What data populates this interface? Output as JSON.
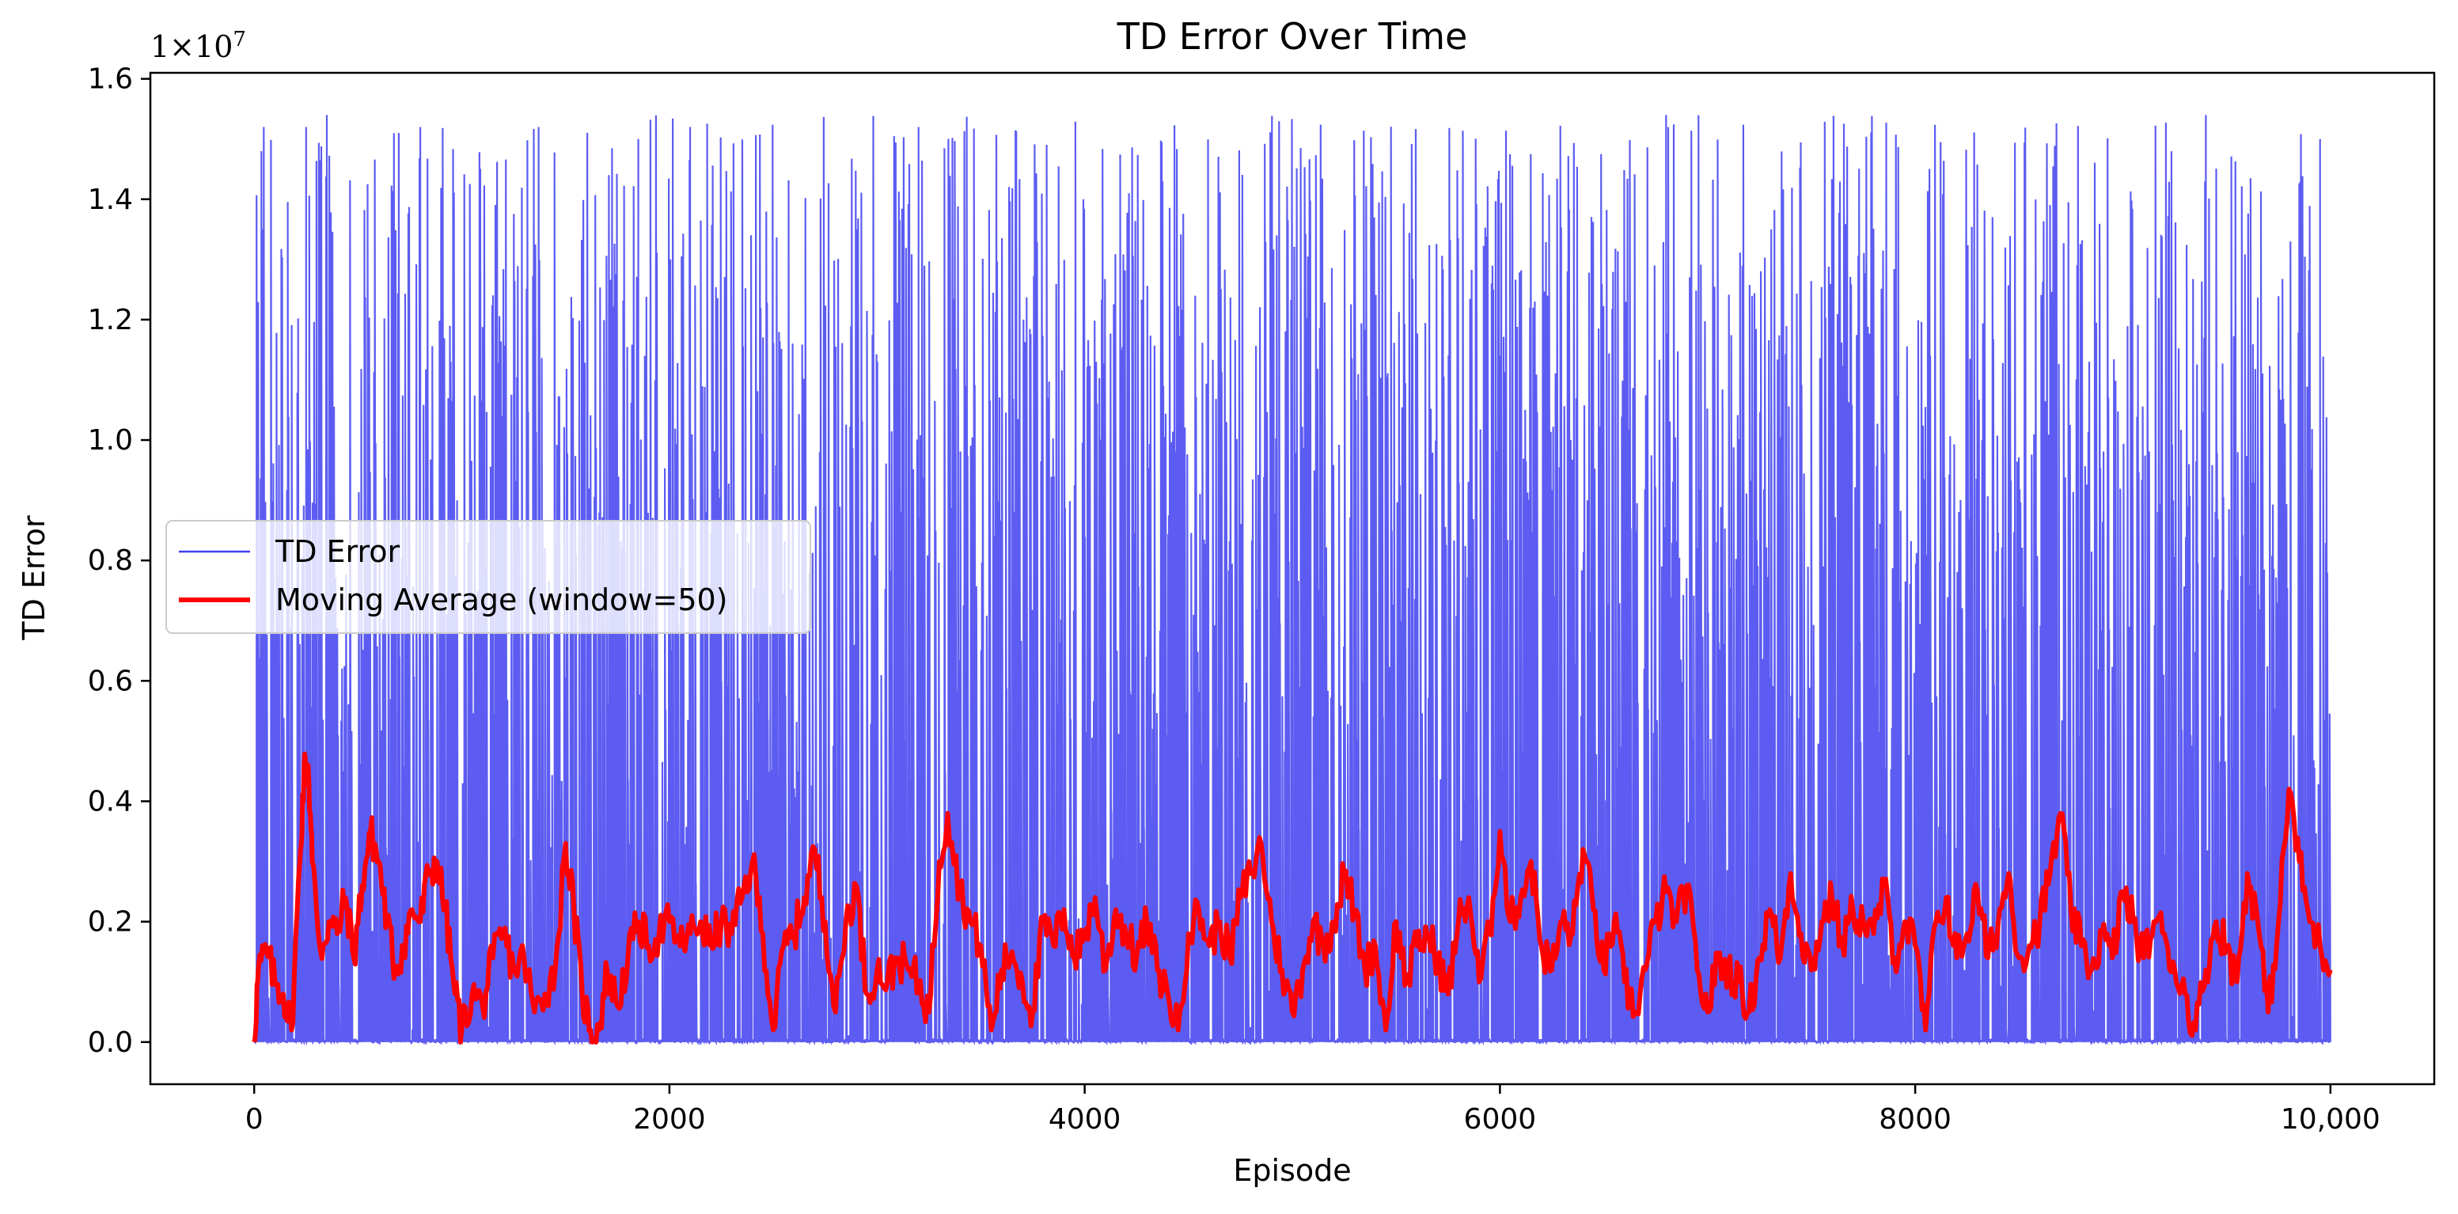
{
  "chart_data": {
    "type": "line",
    "title": "TD Error Over Time",
    "xlabel": "Episode",
    "ylabel": "TD Error",
    "y_scale_label": "1×10",
    "y_scale_exponent": "7",
    "y_multiplier": 10000000,
    "xlim": [
      -500,
      10500
    ],
    "ylim": [
      -0.07,
      1.61
    ],
    "x_ticks": [
      0,
      2000,
      4000,
      6000,
      8000,
      10000
    ],
    "x_tick_labels": [
      "0",
      "2000",
      "4000",
      "6000",
      "8000",
      "10,000"
    ],
    "y_ticks": [
      0.0,
      0.2,
      0.4,
      0.6,
      0.8,
      1.0,
      1.2,
      1.4,
      1.6
    ],
    "y_tick_labels": [
      "0.0",
      "0.2",
      "0.4",
      "0.6",
      "0.8",
      "1.0",
      "1.2",
      "1.4",
      "1.6"
    ],
    "grid": false,
    "legend_position": "center-left",
    "episodes": 10000,
    "series": [
      {
        "name": "TD Error",
        "color": "#4040f0",
        "style": "thin line",
        "values_approx": {
          "baseline": 0.0,
          "spike_max": 1.54,
          "spike_min_cluster": 0.8,
          "peak_examples": [
            [
              40,
              1.35
            ],
            [
              250,
              1.52
            ],
            [
              350,
              1.54
            ],
            [
              800,
              1.52
            ],
            [
              1850,
              1.5
            ],
            [
              2100,
              1.52
            ],
            [
              3200,
              1.52
            ],
            [
              6800,
              1.54
            ],
            [
              9400,
              1.54
            ],
            [
              9950,
              1.5
            ]
          ]
        }
      },
      {
        "name": "Moving Average (window=50)",
        "color": "#ff0000",
        "style": "thick line",
        "window": 50,
        "points": [
          [
            0,
            0.0
          ],
          [
            20,
            0.12
          ],
          [
            60,
            0.15
          ],
          [
            100,
            0.1
          ],
          [
            140,
            0.08
          ],
          [
            180,
            0.02
          ],
          [
            220,
            0.3
          ],
          [
            240,
            0.45
          ],
          [
            260,
            0.46
          ],
          [
            280,
            0.3
          ],
          [
            320,
            0.15
          ],
          [
            360,
            0.2
          ],
          [
            400,
            0.18
          ],
          [
            440,
            0.24
          ],
          [
            480,
            0.14
          ],
          [
            520,
            0.26
          ],
          [
            560,
            0.35
          ],
          [
            600,
            0.3
          ],
          [
            640,
            0.2
          ],
          [
            680,
            0.12
          ],
          [
            720,
            0.16
          ],
          [
            760,
            0.22
          ],
          [
            800,
            0.2
          ],
          [
            840,
            0.28
          ],
          [
            880,
            0.3
          ],
          [
            920,
            0.22
          ],
          [
            960,
            0.1
          ],
          [
            1000,
            0.02
          ],
          [
            1050,
            0.08
          ],
          [
            1100,
            0.06
          ],
          [
            1150,
            0.14
          ],
          [
            1200,
            0.18
          ],
          [
            1250,
            0.12
          ],
          [
            1300,
            0.14
          ],
          [
            1350,
            0.05
          ],
          [
            1400,
            0.08
          ],
          [
            1450,
            0.12
          ],
          [
            1500,
            0.33
          ],
          [
            1540,
            0.22
          ],
          [
            1580,
            0.08
          ],
          [
            1620,
            0.02
          ],
          [
            1660,
            0.02
          ],
          [
            1700,
            0.12
          ],
          [
            1750,
            0.06
          ],
          [
            1800,
            0.14
          ],
          [
            1850,
            0.2
          ],
          [
            1900,
            0.16
          ],
          [
            1950,
            0.18
          ],
          [
            2000,
            0.2
          ],
          [
            2050,
            0.16
          ],
          [
            2100,
            0.18
          ],
          [
            2150,
            0.2
          ],
          [
            2200,
            0.16
          ],
          [
            2250,
            0.2
          ],
          [
            2300,
            0.18
          ],
          [
            2350,
            0.24
          ],
          [
            2400,
            0.3
          ],
          [
            2450,
            0.18
          ],
          [
            2500,
            0.02
          ],
          [
            2550,
            0.16
          ],
          [
            2600,
            0.18
          ],
          [
            2650,
            0.24
          ],
          [
            2700,
            0.32
          ],
          [
            2750,
            0.2
          ],
          [
            2800,
            0.05
          ],
          [
            2850,
            0.2
          ],
          [
            2900,
            0.26
          ],
          [
            2950,
            0.08
          ],
          [
            3000,
            0.12
          ],
          [
            3050,
            0.1
          ],
          [
            3100,
            0.14
          ],
          [
            3150,
            0.12
          ],
          [
            3200,
            0.1
          ],
          [
            3250,
            0.05
          ],
          [
            3300,
            0.3
          ],
          [
            3340,
            0.38
          ],
          [
            3400,
            0.25
          ],
          [
            3450,
            0.2
          ],
          [
            3500,
            0.16
          ],
          [
            3550,
            0.02
          ],
          [
            3600,
            0.12
          ],
          [
            3650,
            0.15
          ],
          [
            3700,
            0.1
          ],
          [
            3750,
            0.05
          ],
          [
            3800,
            0.2
          ],
          [
            3850,
            0.16
          ],
          [
            3900,
            0.22
          ],
          [
            3950,
            0.14
          ],
          [
            4000,
            0.18
          ],
          [
            4050,
            0.24
          ],
          [
            4100,
            0.12
          ],
          [
            4150,
            0.22
          ],
          [
            4200,
            0.18
          ],
          [
            4250,
            0.14
          ],
          [
            4300,
            0.2
          ],
          [
            4350,
            0.12
          ],
          [
            4400,
            0.08
          ],
          [
            4450,
            0.02
          ],
          [
            4500,
            0.18
          ],
          [
            4550,
            0.22
          ],
          [
            4600,
            0.16
          ],
          [
            4650,
            0.2
          ],
          [
            4700,
            0.14
          ],
          [
            4750,
            0.24
          ],
          [
            4800,
            0.28
          ],
          [
            4850,
            0.33
          ],
          [
            4900,
            0.2
          ],
          [
            4950,
            0.12
          ],
          [
            5000,
            0.05
          ],
          [
            5050,
            0.12
          ],
          [
            5100,
            0.2
          ],
          [
            5150,
            0.16
          ],
          [
            5200,
            0.2
          ],
          [
            5250,
            0.28
          ],
          [
            5300,
            0.22
          ],
          [
            5350,
            0.12
          ],
          [
            5400,
            0.16
          ],
          [
            5450,
            0.02
          ],
          [
            5500,
            0.2
          ],
          [
            5550,
            0.1
          ],
          [
            5600,
            0.16
          ],
          [
            5650,
            0.18
          ],
          [
            5700,
            0.14
          ],
          [
            5750,
            0.08
          ],
          [
            5800,
            0.2
          ],
          [
            5850,
            0.24
          ],
          [
            5900,
            0.1
          ],
          [
            5950,
            0.18
          ],
          [
            6000,
            0.35
          ],
          [
            6050,
            0.2
          ],
          [
            6100,
            0.24
          ],
          [
            6150,
            0.3
          ],
          [
            6200,
            0.16
          ],
          [
            6250,
            0.12
          ],
          [
            6300,
            0.2
          ],
          [
            6350,
            0.18
          ],
          [
            6400,
            0.32
          ],
          [
            6450,
            0.22
          ],
          [
            6500,
            0.12
          ],
          [
            6550,
            0.2
          ],
          [
            6600,
            0.1
          ],
          [
            6650,
            0.05
          ],
          [
            6700,
            0.12
          ],
          [
            6750,
            0.2
          ],
          [
            6800,
            0.25
          ],
          [
            6850,
            0.2
          ],
          [
            6900,
            0.26
          ],
          [
            6950,
            0.12
          ],
          [
            7000,
            0.05
          ],
          [
            7050,
            0.14
          ],
          [
            7100,
            0.12
          ],
          [
            7150,
            0.1
          ],
          [
            7200,
            0.05
          ],
          [
            7250,
            0.14
          ],
          [
            7300,
            0.22
          ],
          [
            7350,
            0.14
          ],
          [
            7400,
            0.28
          ],
          [
            7450,
            0.18
          ],
          [
            7500,
            0.12
          ],
          [
            7550,
            0.2
          ],
          [
            7600,
            0.24
          ],
          [
            7650,
            0.16
          ],
          [
            7700,
            0.22
          ],
          [
            7750,
            0.2
          ],
          [
            7800,
            0.18
          ],
          [
            7850,
            0.26
          ],
          [
            7900,
            0.14
          ],
          [
            7950,
            0.2
          ],
          [
            8000,
            0.16
          ],
          [
            8050,
            0.02
          ],
          [
            8100,
            0.2
          ],
          [
            8150,
            0.24
          ],
          [
            8200,
            0.14
          ],
          [
            8250,
            0.18
          ],
          [
            8300,
            0.25
          ],
          [
            8350,
            0.14
          ],
          [
            8400,
            0.2
          ],
          [
            8450,
            0.28
          ],
          [
            8500,
            0.14
          ],
          [
            8550,
            0.16
          ],
          [
            8600,
            0.2
          ],
          [
            8650,
            0.28
          ],
          [
            8700,
            0.38
          ],
          [
            8750,
            0.22
          ],
          [
            8800,
            0.16
          ],
          [
            8850,
            0.12
          ],
          [
            8900,
            0.18
          ],
          [
            8950,
            0.14
          ],
          [
            9000,
            0.25
          ],
          [
            9050,
            0.2
          ],
          [
            9100,
            0.14
          ],
          [
            9150,
            0.2
          ],
          [
            9200,
            0.18
          ],
          [
            9250,
            0.12
          ],
          [
            9300,
            0.08
          ],
          [
            9350,
            0.02
          ],
          [
            9400,
            0.12
          ],
          [
            9450,
            0.2
          ],
          [
            9500,
            0.16
          ],
          [
            9550,
            0.1
          ],
          [
            9600,
            0.28
          ],
          [
            9650,
            0.2
          ],
          [
            9700,
            0.05
          ],
          [
            9750,
            0.2
          ],
          [
            9800,
            0.42
          ],
          [
            9850,
            0.3
          ],
          [
            9900,
            0.2
          ],
          [
            9950,
            0.16
          ],
          [
            10000,
            0.12
          ]
        ]
      }
    ]
  }
}
